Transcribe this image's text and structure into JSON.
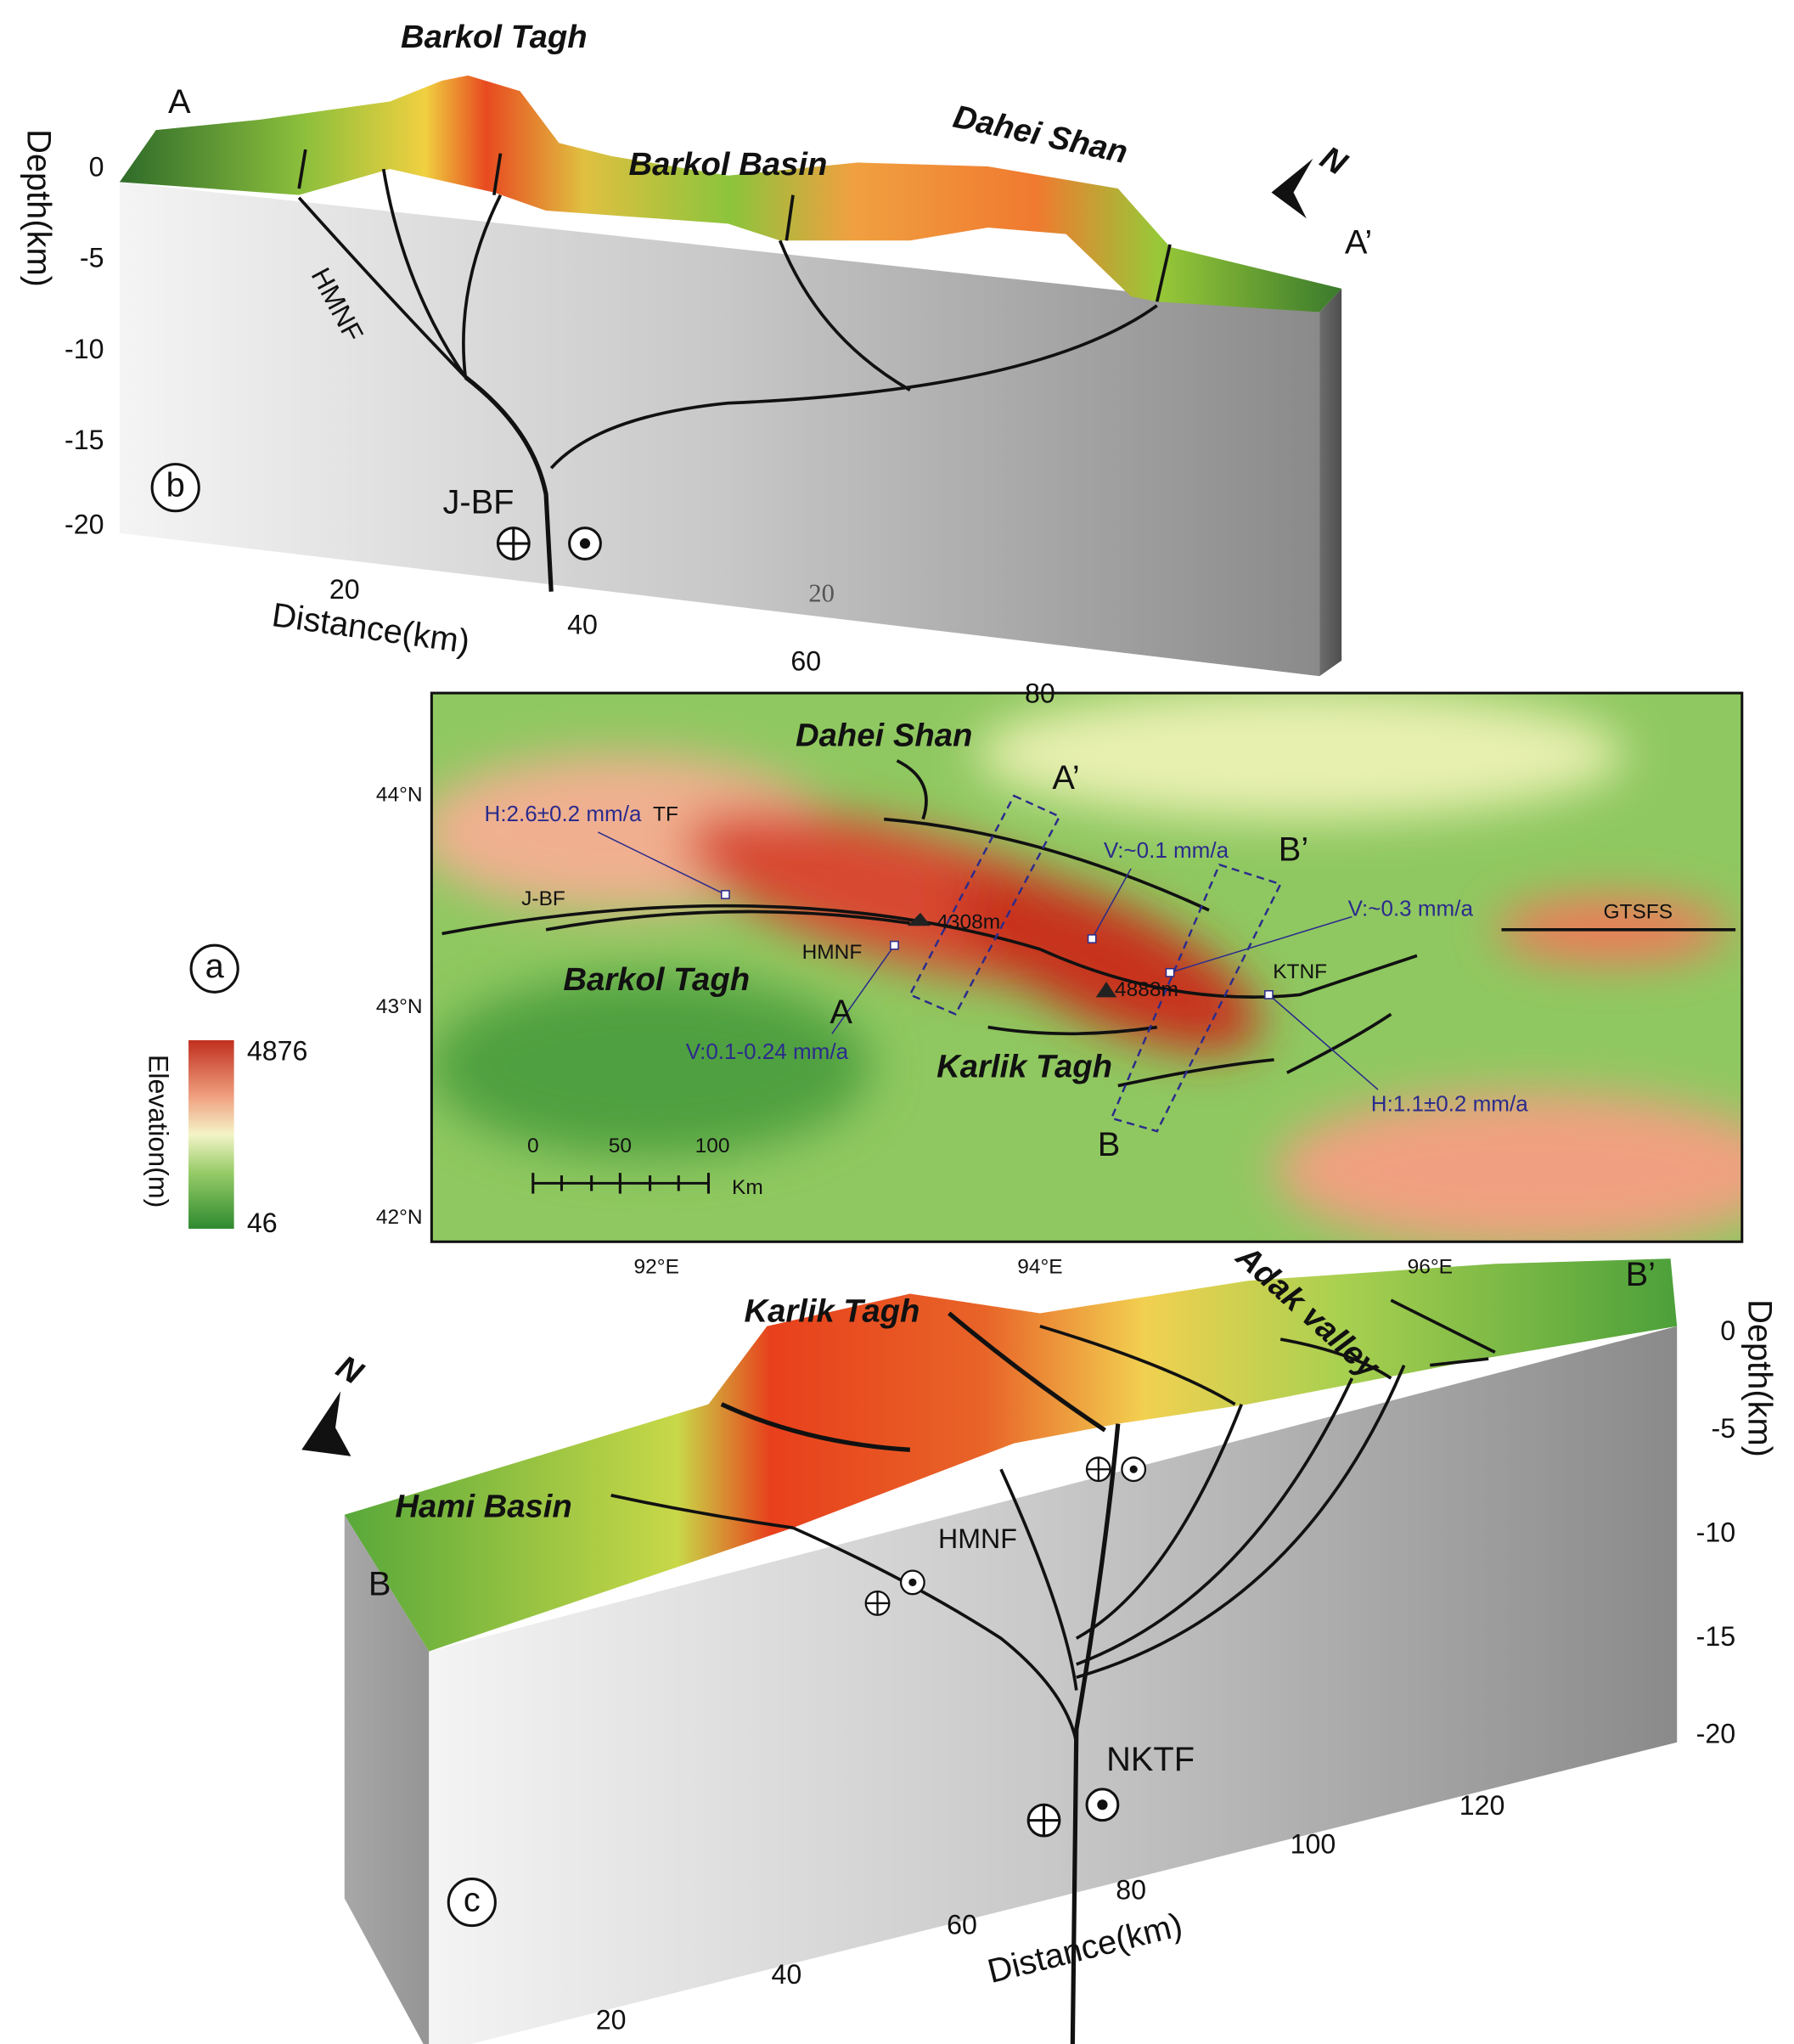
{
  "panel_b": {
    "label": "b",
    "title": "Barkol Tagh",
    "section_start": "A",
    "section_end": "A’",
    "north": "N",
    "y_axis_title": "Depth(km)",
    "y_ticks": [
      "0",
      "-5",
      "-10",
      "-15",
      "-20"
    ],
    "x_axis_title": "Distance(km)",
    "x_ticks": [
      "20",
      "40",
      "60",
      "80"
    ],
    "stray_tick": "20",
    "places": [
      "Barkol Basin",
      "Dahei Shan"
    ],
    "faults": [
      "HMNF",
      "J-BF"
    ]
  },
  "panel_a": {
    "label": "a",
    "places": [
      "Dahei Shan",
      "Barkol Tagh",
      "Karlik Tagh"
    ],
    "profile_ends": [
      "A’",
      "B’",
      "A",
      "B"
    ],
    "rates": [
      "H:2.6±0.2 mm/a",
      "V:~0.1 mm/a",
      "V:~0.3 mm/a",
      "V:0.1-0.24 mm/a",
      "H:1.1±0.2 mm/a"
    ],
    "faults": [
      "TF",
      "J-BF",
      "GTSFS",
      "HMNF",
      "KTNF"
    ],
    "peaks": [
      "4308m",
      "4888m"
    ],
    "lat_ticks": [
      "44°N",
      "43°N",
      "42°N"
    ],
    "lon_ticks": [
      "92°E",
      "94°E",
      "96°E"
    ],
    "scale_ticks": [
      "0",
      "50",
      "100"
    ],
    "scale_unit": "Km",
    "legend": {
      "title": "Elevation(m)",
      "max": "4876",
      "min": "46"
    }
  },
  "panel_c": {
    "label": "c",
    "title": "Karlik Tagh",
    "section_start": "B",
    "section_end": "B’",
    "north": "N",
    "places": [
      "Adak valley",
      "Hami Basin"
    ],
    "y_axis_title": "Depth(km)",
    "y_ticks": [
      "0",
      "-5",
      "-10",
      "-15",
      "-20"
    ],
    "x_axis_title": "Distance(km)",
    "x_ticks": [
      "20",
      "40",
      "60",
      "80",
      "100",
      "120"
    ],
    "faults": [
      "HMNF",
      "NKTF"
    ]
  }
}
